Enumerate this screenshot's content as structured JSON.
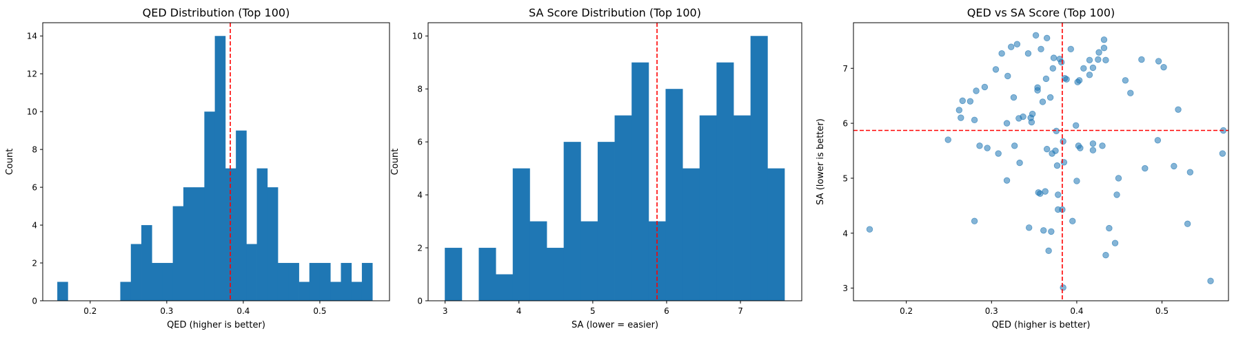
{
  "colors": {
    "bar": "#1f77b4",
    "scatter": "#1f77b4",
    "refline": "#ff0000",
    "axis": "#000000"
  },
  "chart_data": [
    {
      "type": "bar",
      "title": "QED Distribution (Top 100)",
      "xlabel": "QED (higher is better)",
      "ylabel": "Count",
      "xlim": [
        0.138,
        0.591
      ],
      "ylim": [
        0,
        14.7
      ],
      "xticks": [
        0.2,
        0.3,
        0.4,
        0.5
      ],
      "yticks": [
        0,
        2,
        4,
        6,
        8,
        10,
        12,
        14
      ],
      "bin_edges": [
        0.157,
        0.1707,
        0.1845,
        0.1982,
        0.2119,
        0.2256,
        0.2393,
        0.2531,
        0.2668,
        0.2805,
        0.2942,
        0.3079,
        0.3217,
        0.3354,
        0.3491,
        0.3628,
        0.3765,
        0.3903,
        0.404,
        0.4177,
        0.4314,
        0.4451,
        0.4589,
        0.4726,
        0.4863,
        0.5,
        0.5137,
        0.5275,
        0.5412,
        0.5549,
        0.5686
      ],
      "values": [
        1,
        0,
        0,
        0,
        0,
        0,
        1,
        3,
        4,
        2,
        2,
        5,
        6,
        6,
        10,
        14,
        7,
        9,
        3,
        7,
        6,
        2,
        2,
        1,
        2,
        2,
        1,
        2,
        1,
        2
      ],
      "vline": 0.383,
      "grid": false,
      "legend": "none"
    },
    {
      "type": "bar",
      "title": "SA Score Distribution (Top 100)",
      "xlabel": "SA (lower = easier)",
      "ylabel": "Count",
      "xlim": [
        2.77,
        7.83
      ],
      "ylim": [
        0,
        10.5
      ],
      "xticks": [
        3,
        4,
        5,
        6,
        7
      ],
      "yticks": [
        0,
        2,
        4,
        6,
        8,
        10
      ],
      "bin_edges": [
        2.996,
        3.226,
        3.456,
        3.686,
        3.916,
        4.146,
        4.376,
        4.606,
        4.836,
        5.066,
        5.296,
        5.526,
        5.756,
        5.986,
        6.216,
        6.446,
        6.676,
        6.906,
        7.136,
        7.366,
        7.596
      ],
      "values": [
        2,
        0,
        2,
        1,
        5,
        3,
        2,
        6,
        3,
        6,
        7,
        9,
        3,
        8,
        5,
        7,
        9,
        7,
        10,
        5
      ],
      "vline": 5.87,
      "grid": false,
      "legend": "none"
    },
    {
      "type": "scatter",
      "title": "QED vs SA Score (Top 100)",
      "xlabel": "QED (higher is better)",
      "ylabel": "SA (lower is better)",
      "xlim": [
        0.138,
        0.578
      ],
      "ylim": [
        2.77,
        7.83
      ],
      "xticks": [
        0.2,
        0.3,
        0.4,
        0.5
      ],
      "yticks": [
        3,
        4,
        5,
        6,
        7
      ],
      "vline": 0.383,
      "hline": 5.87,
      "grid": false,
      "legend": "none",
      "points": [
        [
          0.157,
          4.07
        ],
        [
          0.249,
          5.7
        ],
        [
          0.262,
          6.24
        ],
        [
          0.264,
          6.1
        ],
        [
          0.266,
          6.41
        ],
        [
          0.275,
          6.4
        ],
        [
          0.28,
          6.06
        ],
        [
          0.282,
          6.59
        ],
        [
          0.28,
          4.22
        ],
        [
          0.286,
          5.59
        ],
        [
          0.292,
          6.66
        ],
        [
          0.295,
          5.55
        ],
        [
          0.305,
          6.98
        ],
        [
          0.308,
          5.45
        ],
        [
          0.312,
          7.27
        ],
        [
          0.318,
          4.96
        ],
        [
          0.318,
          6.0
        ],
        [
          0.319,
          6.86
        ],
        [
          0.323,
          7.39
        ],
        [
          0.326,
          6.47
        ],
        [
          0.327,
          5.59
        ],
        [
          0.33,
          7.44
        ],
        [
          0.332,
          6.09
        ],
        [
          0.333,
          5.28
        ],
        [
          0.337,
          6.12
        ],
        [
          0.343,
          7.27
        ],
        [
          0.344,
          4.1
        ],
        [
          0.346,
          6.1
        ],
        [
          0.347,
          6.02
        ],
        [
          0.348,
          6.17
        ],
        [
          0.352,
          7.6
        ],
        [
          0.354,
          6.6
        ],
        [
          0.354,
          6.65
        ],
        [
          0.355,
          4.74
        ],
        [
          0.357,
          4.72
        ],
        [
          0.358,
          7.35
        ],
        [
          0.36,
          6.39
        ],
        [
          0.361,
          4.05
        ],
        [
          0.363,
          4.76
        ],
        [
          0.364,
          6.81
        ],
        [
          0.365,
          7.55
        ],
        [
          0.365,
          5.53
        ],
        [
          0.367,
          3.68
        ],
        [
          0.369,
          6.47
        ],
        [
          0.37,
          4.03
        ],
        [
          0.371,
          5.45
        ],
        [
          0.372,
          7.0
        ],
        [
          0.373,
          7.19
        ],
        [
          0.375,
          5.5
        ],
        [
          0.376,
          5.86
        ],
        [
          0.377,
          5.23
        ],
        [
          0.378,
          4.7
        ],
        [
          0.378,
          4.43
        ],
        [
          0.38,
          7.17
        ],
        [
          0.382,
          7.11
        ],
        [
          0.383,
          4.43
        ],
        [
          0.384,
          5.67
        ],
        [
          0.384,
          3.01
        ],
        [
          0.385,
          5.29
        ],
        [
          0.386,
          6.82
        ],
        [
          0.388,
          6.8
        ],
        [
          0.393,
          7.35
        ],
        [
          0.395,
          4.22
        ],
        [
          0.399,
          5.96
        ],
        [
          0.4,
          4.95
        ],
        [
          0.401,
          6.75
        ],
        [
          0.402,
          5.59
        ],
        [
          0.403,
          6.78
        ],
        [
          0.404,
          5.55
        ],
        [
          0.408,
          7.0
        ],
        [
          0.415,
          6.88
        ],
        [
          0.415,
          7.15
        ],
        [
          0.419,
          5.63
        ],
        [
          0.419,
          5.51
        ],
        [
          0.419,
          7.01
        ],
        [
          0.425,
          7.16
        ],
        [
          0.426,
          7.29
        ],
        [
          0.43,
          5.59
        ],
        [
          0.432,
          7.37
        ],
        [
          0.432,
          7.52
        ],
        [
          0.434,
          3.6
        ],
        [
          0.434,
          7.15
        ],
        [
          0.438,
          4.09
        ],
        [
          0.445,
          3.82
        ],
        [
          0.447,
          4.7
        ],
        [
          0.449,
          5.0
        ],
        [
          0.457,
          6.78
        ],
        [
          0.463,
          6.55
        ],
        [
          0.476,
          7.16
        ],
        [
          0.48,
          5.18
        ],
        [
          0.495,
          5.69
        ],
        [
          0.496,
          7.13
        ],
        [
          0.502,
          7.02
        ],
        [
          0.514,
          5.22
        ],
        [
          0.519,
          6.25
        ],
        [
          0.53,
          4.17
        ],
        [
          0.533,
          5.11
        ],
        [
          0.557,
          3.13
        ],
        [
          0.571,
          5.45
        ],
        [
          0.572,
          5.87
        ]
      ]
    }
  ]
}
